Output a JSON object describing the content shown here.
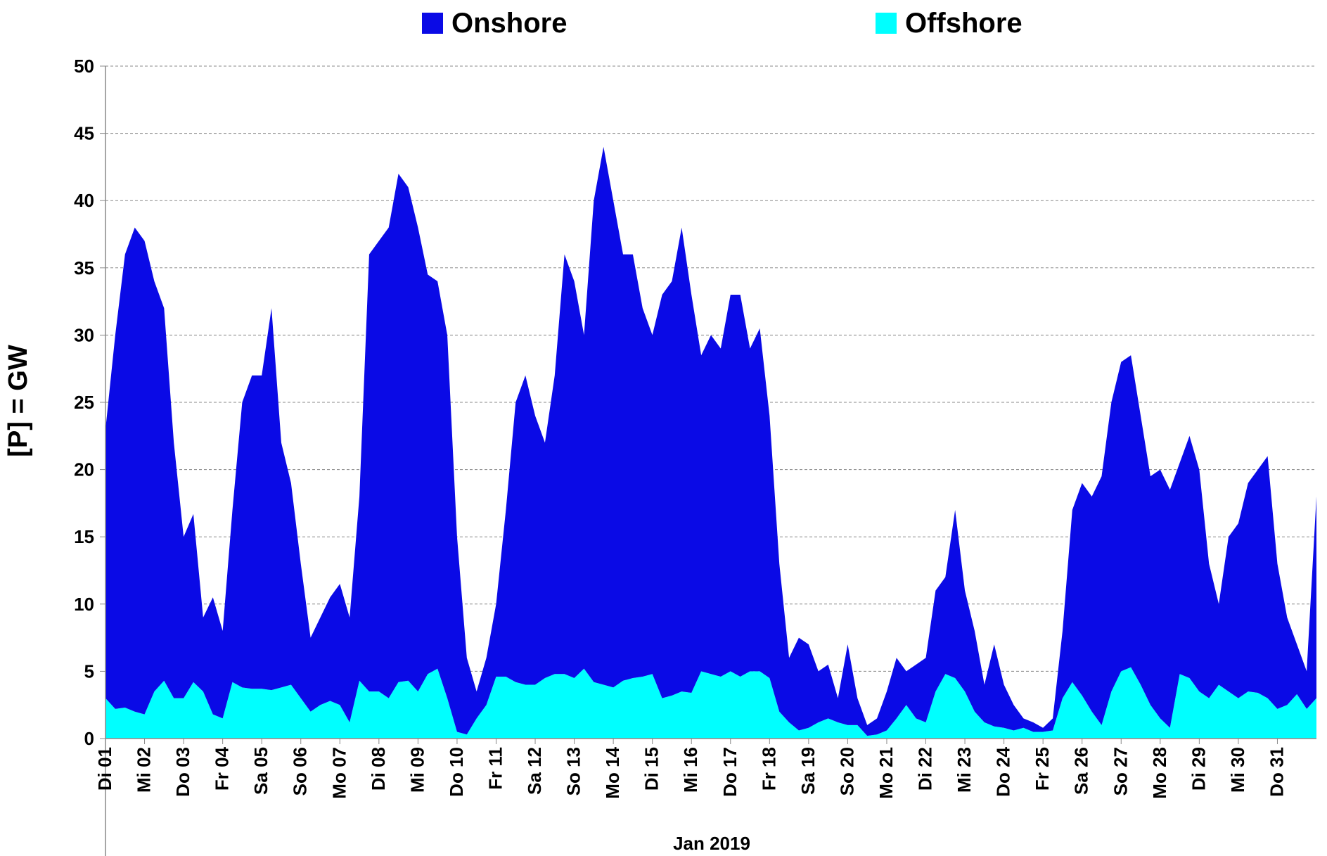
{
  "chart_data": {
    "type": "area",
    "stacked": true,
    "ylabel": "[P] = GW",
    "xlabel": "Jan 2019",
    "x": [
      1,
      1.25,
      1.5,
      1.75,
      2,
      2.25,
      2.5,
      2.75,
      3,
      3.25,
      3.5,
      3.75,
      4,
      4.25,
      4.5,
      4.75,
      5,
      5.25,
      5.5,
      5.75,
      6,
      6.25,
      6.5,
      6.75,
      7,
      7.25,
      7.5,
      7.75,
      8,
      8.25,
      8.5,
      8.75,
      9,
      9.25,
      9.5,
      9.75,
      10,
      10.25,
      10.5,
      10.75,
      11,
      11.25,
      11.5,
      11.75,
      12,
      12.25,
      12.5,
      12.75,
      13,
      13.25,
      13.5,
      13.75,
      14,
      14.25,
      14.5,
      14.75,
      15,
      15.25,
      15.5,
      15.75,
      16,
      16.25,
      16.5,
      16.75,
      17,
      17.25,
      17.5,
      17.75,
      18,
      18.25,
      18.5,
      18.75,
      19,
      19.25,
      19.5,
      19.75,
      20,
      20.25,
      20.5,
      20.75,
      21,
      21.25,
      21.5,
      21.75,
      22,
      22.25,
      22.5,
      22.75,
      23,
      23.25,
      23.5,
      23.75,
      24,
      24.25,
      24.5,
      24.75,
      25,
      25.25,
      25.5,
      25.75,
      26,
      26.25,
      26.5,
      26.75,
      27,
      27.25,
      27.5,
      27.75,
      28,
      28.25,
      28.5,
      28.75,
      29,
      29.25,
      29.5,
      29.75,
      30,
      30.25,
      30.5,
      30.75,
      31,
      31.25,
      31.5,
      31.75,
      32
    ],
    "series": [
      {
        "name": "Offshore",
        "color": "#00ffff",
        "values": [
          3,
          2.2,
          2.3,
          2,
          1.8,
          3.5,
          4.3,
          3,
          3,
          4.2,
          3.5,
          1.8,
          1.5,
          4.2,
          3.8,
          3.7,
          3.7,
          3.6,
          3.8,
          4,
          3,
          2,
          2.5,
          2.8,
          2.5,
          1.2,
          4.3,
          3.5,
          3.5,
          3,
          4.2,
          4.3,
          3.5,
          4.8,
          5.2,
          3,
          0.5,
          0.3,
          1.5,
          2.5,
          4.6,
          4.6,
          4.2,
          4,
          4,
          4.5,
          4.8,
          4.8,
          4.5,
          5.2,
          4.2,
          4,
          3.8,
          4.3,
          4.5,
          4.6,
          4.8,
          3,
          3.2,
          3.5,
          3.4,
          5,
          4.8,
          4.6,
          5,
          4.6,
          5,
          5,
          4.5,
          2,
          1.2,
          0.6,
          0.8,
          1.2,
          1.5,
          1.2,
          1,
          1,
          0.2,
          0.3,
          0.6,
          1.5,
          2.5,
          1.5,
          1.2,
          3.5,
          4.8,
          4.5,
          3.5,
          2,
          1.2,
          0.9,
          0.8,
          0.6,
          0.8,
          0.5,
          0.5,
          0.6,
          3,
          4.2,
          3.2,
          2,
          1,
          3.5,
          5,
          5.3,
          4,
          2.5,
          1.5,
          0.8,
          4.8,
          4.5,
          3.5,
          3,
          4,
          3.5,
          3,
          3.5,
          3.4,
          3,
          2.2,
          2.5,
          3.3,
          2.2,
          3
        ]
      },
      {
        "name": "Onshore",
        "color": "#0a0ae6",
        "values": [
          20,
          27.8,
          33.7,
          36,
          35.2,
          30.5,
          27.7,
          19,
          12,
          12.5,
          5.5,
          8.7,
          6.5,
          12.8,
          21.2,
          23.3,
          23.3,
          28.4,
          18.2,
          15,
          10,
          5.5,
          6.5,
          7.7,
          9,
          7.8,
          13.7,
          32.5,
          33.5,
          35,
          37.8,
          36.7,
          34.5,
          29.7,
          28.8,
          27,
          14.5,
          5.7,
          2,
          3.5,
          5.4,
          12.4,
          20.8,
          23,
          20,
          17.5,
          22.2,
          31.2,
          29.5,
          24.8,
          35.8,
          40,
          36.2,
          31.7,
          31.5,
          27.4,
          25.2,
          30,
          30.8,
          34.5,
          29.6,
          23.5,
          25.2,
          24.4,
          28,
          28.4,
          24,
          25.5,
          19.5,
          11,
          4.8,
          6.9,
          6.2,
          3.8,
          4,
          1.8,
          6,
          2,
          0.8,
          1.2,
          2.9,
          4.5,
          2.5,
          4,
          4.8,
          7.5,
          7.2,
          12.5,
          7.5,
          6,
          2.8,
          6.1,
          3.2,
          1.9,
          0.7,
          0.7,
          0.3,
          0.9,
          5,
          12.8,
          15.8,
          16,
          18.5,
          21.5,
          23,
          23.2,
          20,
          17,
          18.5,
          17.7,
          15.7,
          18,
          16.5,
          10,
          6,
          11.5,
          13,
          15.5,
          16.6,
          18,
          10.8,
          6.5,
          3.7,
          2.8,
          15
        ]
      }
    ],
    "xlim": [
      1,
      32
    ],
    "xticks": [
      {
        "value": 1,
        "label": "Di 01"
      },
      {
        "value": 2,
        "label": "Mi 02"
      },
      {
        "value": 3,
        "label": "Do 03"
      },
      {
        "value": 4,
        "label": "Fr 04"
      },
      {
        "value": 5,
        "label": "Sa 05"
      },
      {
        "value": 6,
        "label": "So 06"
      },
      {
        "value": 7,
        "label": "Mo 07"
      },
      {
        "value": 8,
        "label": "Di 08"
      },
      {
        "value": 9,
        "label": "Mi 09"
      },
      {
        "value": 10,
        "label": "Do 10"
      },
      {
        "value": 11,
        "label": "Fr 11"
      },
      {
        "value": 12,
        "label": "Sa 12"
      },
      {
        "value": 13,
        "label": "So 13"
      },
      {
        "value": 14,
        "label": "Mo 14"
      },
      {
        "value": 15,
        "label": "Di 15"
      },
      {
        "value": 16,
        "label": "Mi 16"
      },
      {
        "value": 17,
        "label": "Do 17"
      },
      {
        "value": 18,
        "label": "Fr 18"
      },
      {
        "value": 19,
        "label": "Sa 19"
      },
      {
        "value": 20,
        "label": "So 20"
      },
      {
        "value": 21,
        "label": "Mo 21"
      },
      {
        "value": 22,
        "label": "Di 22"
      },
      {
        "value": 23,
        "label": "Mi 23"
      },
      {
        "value": 24,
        "label": "Do 24"
      },
      {
        "value": 25,
        "label": "Fr 25"
      },
      {
        "value": 26,
        "label": "Sa 26"
      },
      {
        "value": 27,
        "label": "So 27"
      },
      {
        "value": 28,
        "label": "Mo 28"
      },
      {
        "value": 29,
        "label": "Di 29"
      },
      {
        "value": 30,
        "label": "Mi 30"
      },
      {
        "value": 31,
        "label": "Do 31"
      }
    ],
    "ylim": [
      0,
      50
    ],
    "yticks": [
      0,
      5,
      10,
      15,
      20,
      25,
      30,
      35,
      40,
      45,
      50
    ],
    "grid": true,
    "legend": "top"
  }
}
